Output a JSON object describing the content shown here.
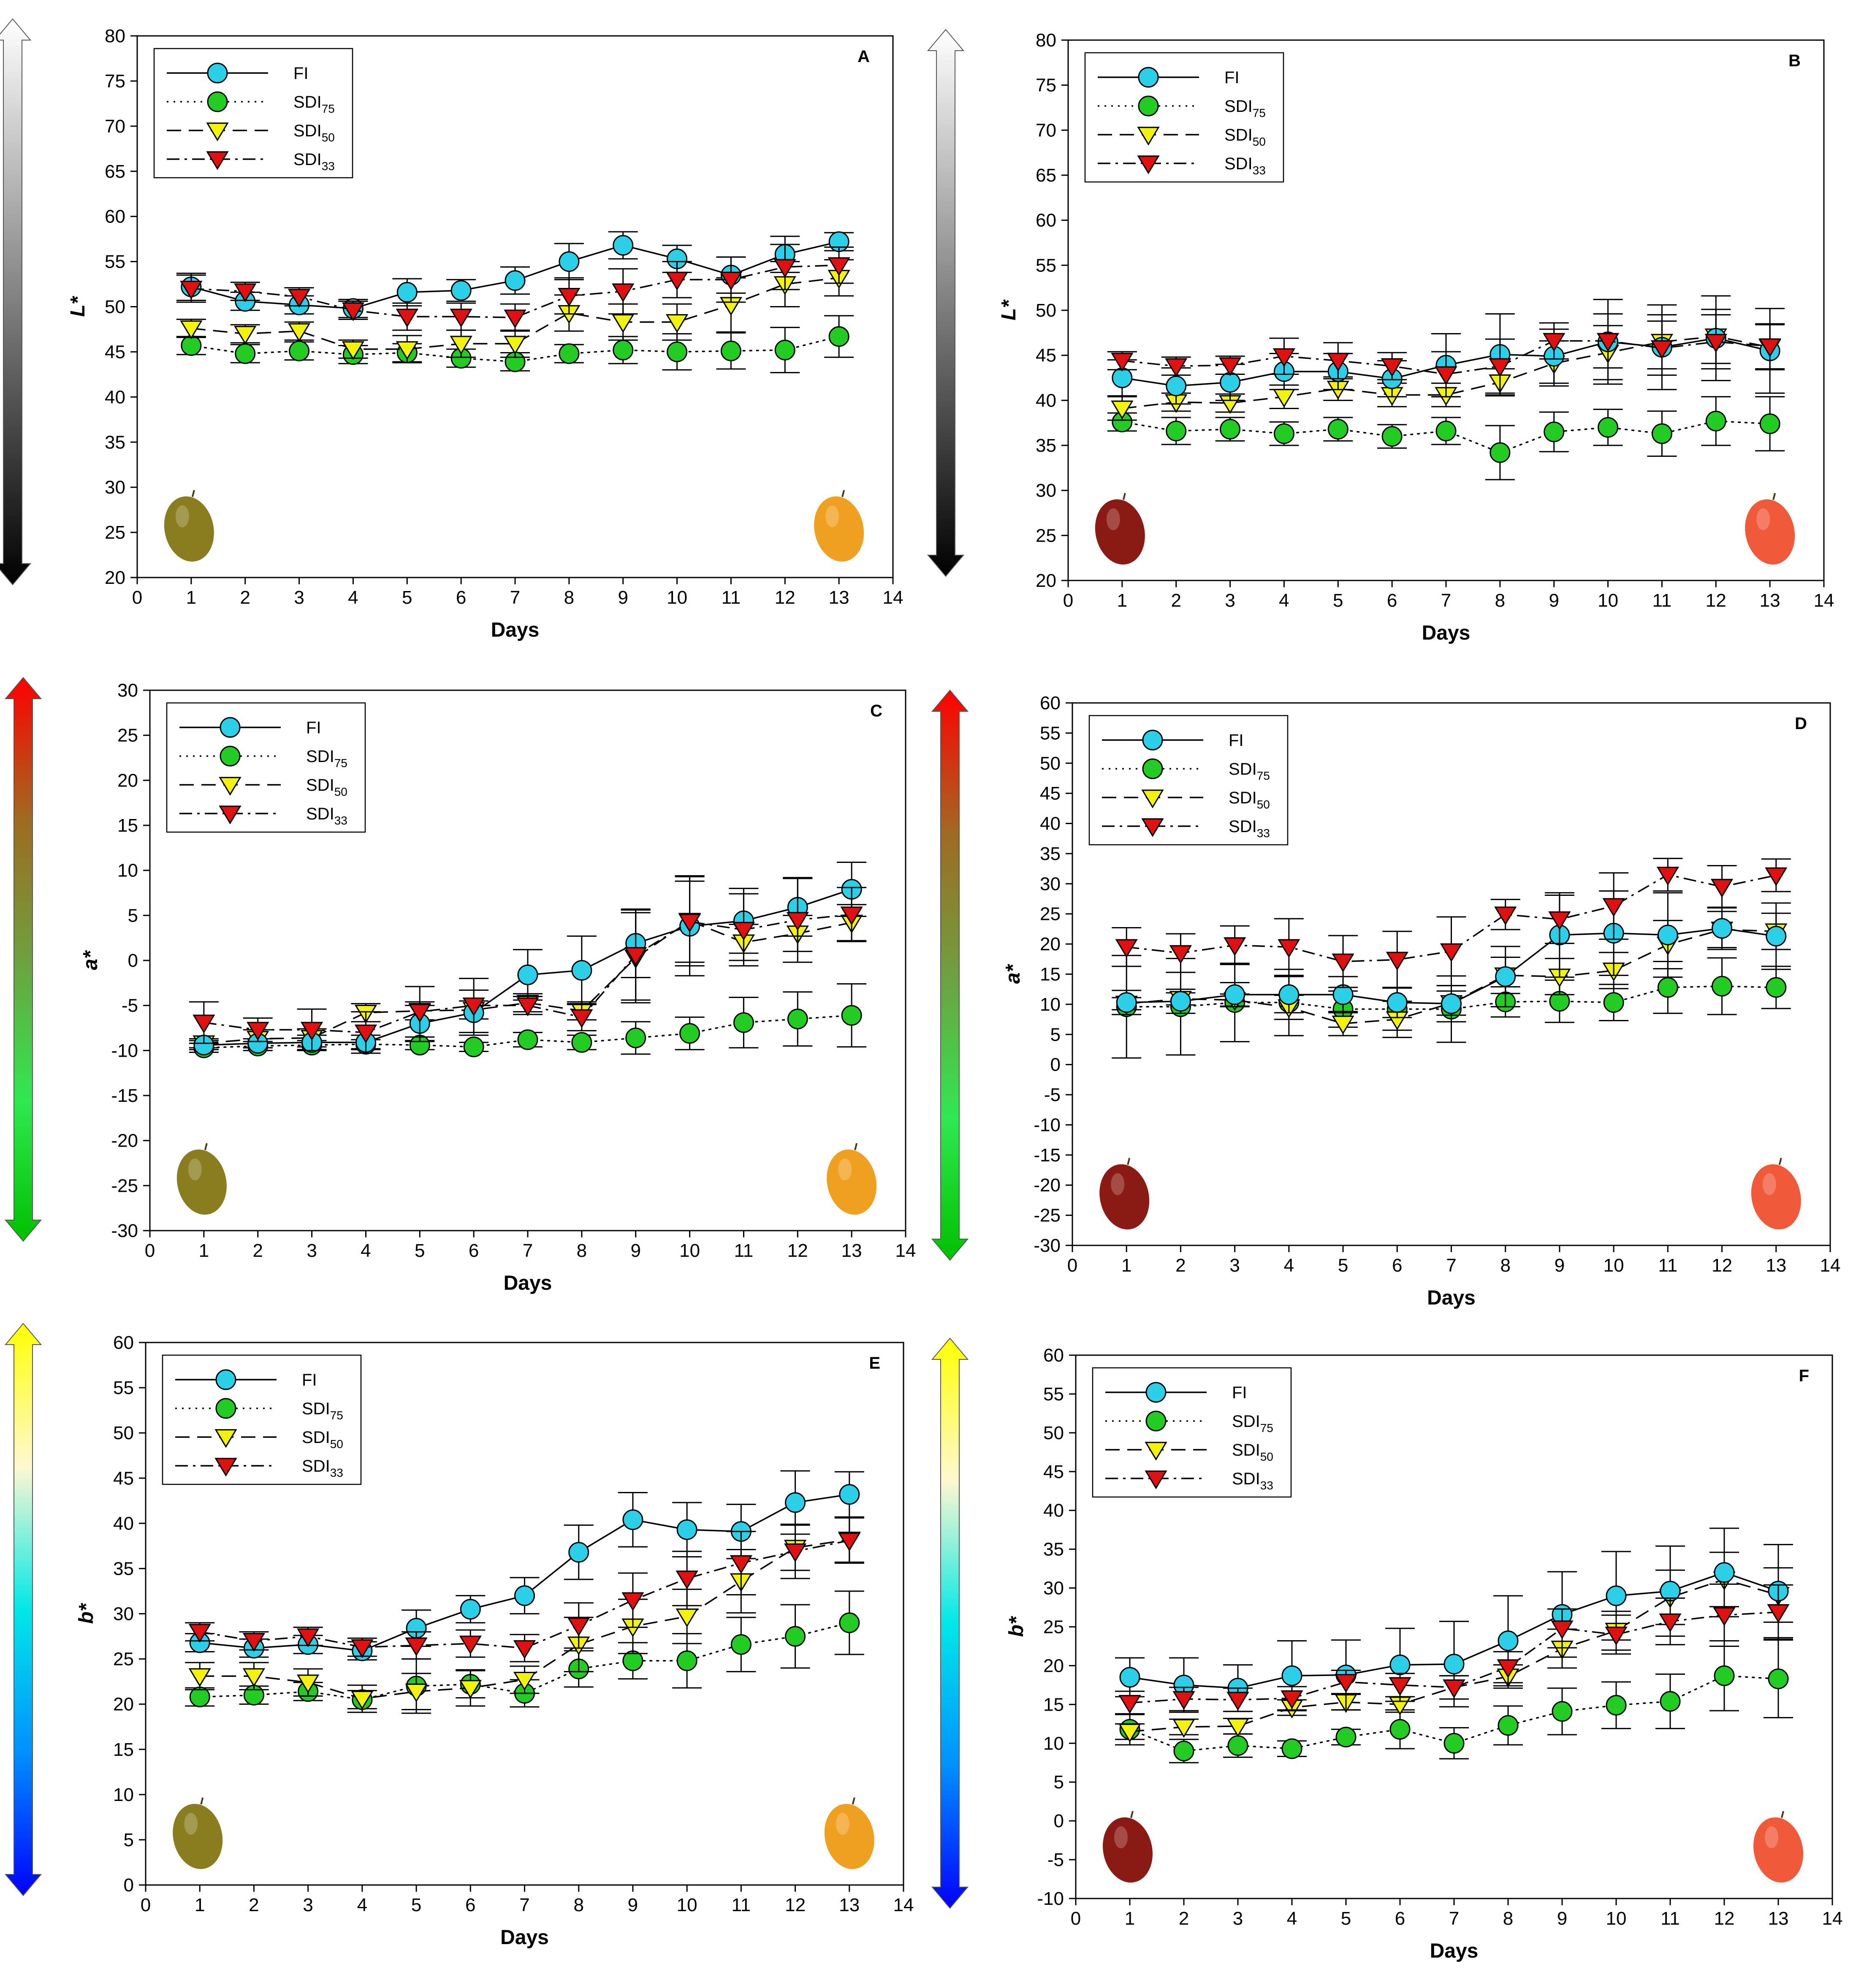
{
  "figure": {
    "x_label": "Days",
    "x_ticks": [
      "0",
      "1",
      "2",
      "3",
      "4",
      "5",
      "6",
      "7",
      "8",
      "9",
      "10",
      "11",
      "12",
      "13",
      "14"
    ]
  },
  "legend_labels": [
    {
      "key": "FI",
      "base": "FI",
      "sub": ""
    },
    {
      "key": "SDI75",
      "base": "SDI",
      "sub": "75"
    },
    {
      "key": "SDI50",
      "base": "SDI",
      "sub": "50"
    },
    {
      "key": "SDI33",
      "base": "SDI",
      "sub": "33"
    }
  ],
  "series_style": {
    "FI": {
      "color": "#2bd0e8",
      "marker": "circle",
      "dash": "none"
    },
    "SDI75": {
      "color": "#22cc22",
      "marker": "circle",
      "dash": "dotted"
    },
    "SDI50": {
      "color": "#f2f20a",
      "marker": "triangle-down",
      "dash": "dashed"
    },
    "SDI33": {
      "color": "#e01010",
      "marker": "triangle-down",
      "dash": "dashdot"
    }
  },
  "fruit_colors": {
    "green_mango": "#8a7d1f",
    "yellow_mango": "#f0a020",
    "dark_red_mango": "#8c1a14",
    "red_mango": "#f05a3a"
  },
  "chart_data": [
    {
      "type": "line",
      "panel": "A",
      "ylabel": "L*",
      "ylim": [
        20,
        80
      ],
      "ytick_step": 5,
      "xlim": [
        0,
        14
      ],
      "xlabel": "Days",
      "color_scale": [
        "#000000",
        "#ffffff"
      ],
      "fruits": [
        "green_mango",
        "yellow_mango"
      ],
      "x": [
        1,
        2,
        3,
        4,
        5,
        6,
        7,
        8,
        9,
        10,
        11,
        12,
        13
      ],
      "series": [
        {
          "name": "FI",
          "values": [
            52.2,
            50.6,
            50.2,
            49.8,
            51.6,
            51.8,
            52.9,
            55.0,
            56.8,
            55.3,
            53.5,
            55.8,
            57.2
          ],
          "errors": [
            1.5,
            1.0,
            1.0,
            1.0,
            1.5,
            1.2,
            1.5,
            2.0,
            1.5,
            1.5,
            2.0,
            2.0,
            1.0
          ]
        },
        {
          "name": "SDI75",
          "values": [
            45.7,
            44.8,
            45.1,
            44.7,
            44.9,
            44.3,
            43.9,
            44.8,
            45.2,
            45.0,
            45.1,
            45.2,
            46.7
          ],
          "errors": [
            1.0,
            1.0,
            1.0,
            1.0,
            1.0,
            1.0,
            1.0,
            1.0,
            1.5,
            2.0,
            2.0,
            2.5,
            2.3
          ]
        },
        {
          "name": "SDI50",
          "values": [
            47.6,
            47.0,
            47.3,
            45.3,
            45.3,
            45.9,
            45.9,
            49.3,
            48.3,
            48.3,
            50.2,
            52.5,
            53.2
          ],
          "errors": [
            1.0,
            1.0,
            1.0,
            1.0,
            1.5,
            1.5,
            1.5,
            2.0,
            2.0,
            2.0,
            3.0,
            2.5,
            2.0
          ]
        },
        {
          "name": "SDI33",
          "values": [
            52.0,
            51.7,
            51.1,
            49.6,
            48.9,
            48.9,
            48.8,
            51.2,
            51.7,
            53.0,
            53.0,
            54.4,
            54.6
          ],
          "errors": [
            1.5,
            1.0,
            1.0,
            1.0,
            1.5,
            1.5,
            1.5,
            2.0,
            2.5,
            2.0,
            2.5,
            2.5,
            2.0
          ]
        }
      ]
    },
    {
      "type": "line",
      "panel": "B",
      "ylabel": "L*",
      "ylim": [
        20,
        80
      ],
      "ytick_step": 5,
      "xlim": [
        0,
        14
      ],
      "xlabel": "Days",
      "color_scale": [
        "#000000",
        "#ffffff"
      ],
      "fruits": [
        "dark_red_mango",
        "red_mango"
      ],
      "x": [
        1,
        2,
        3,
        4,
        5,
        6,
        7,
        8,
        9,
        10,
        11,
        12,
        13
      ],
      "series": [
        {
          "name": "FI",
          "values": [
            42.5,
            41.6,
            42.0,
            43.2,
            43.2,
            42.4,
            43.9,
            45.1,
            44.9,
            46.5,
            45.9,
            46.9,
            45.5
          ],
          "errors": [
            2.0,
            2.0,
            2.0,
            2.0,
            2.0,
            2.0,
            3.5,
            4.5,
            3.0,
            4.7,
            4.7,
            4.7,
            4.7
          ]
        },
        {
          "name": "SDI75",
          "values": [
            37.6,
            36.6,
            36.8,
            36.3,
            36.8,
            36.0,
            36.6,
            34.2,
            36.5,
            37.0,
            36.3,
            37.7,
            37.4
          ],
          "errors": [
            1.0,
            1.5,
            1.3,
            1.3,
            1.3,
            1.3,
            1.5,
            3.0,
            2.2,
            2.0,
            2.5,
            2.7,
            3.0
          ]
        },
        {
          "name": "SDI50",
          "values": [
            39.1,
            39.8,
            39.7,
            40.4,
            41.3,
            40.6,
            40.6,
            42.0,
            44.1,
            45.3,
            46.5,
            47.1,
            45.9
          ],
          "errors": [
            1.3,
            1.0,
            1.0,
            1.3,
            1.3,
            1.3,
            1.3,
            1.5,
            2.5,
            3.0,
            3.0,
            3.0,
            2.5
          ]
        },
        {
          "name": "SDI33",
          "values": [
            44.4,
            43.8,
            43.9,
            44.9,
            44.4,
            43.8,
            42.9,
            43.8,
            46.6,
            46.6,
            45.8,
            46.5,
            46.0
          ],
          "errors": [
            1.0,
            1.0,
            1.0,
            2.0,
            2.0,
            1.5,
            2.5,
            3.0,
            2.0,
            3.0,
            3.0,
            3.0,
            2.5
          ]
        }
      ]
    },
    {
      "type": "line",
      "panel": "C",
      "ylabel": "a*",
      "ylim": [
        -30,
        30
      ],
      "ytick_step": 5,
      "xlim": [
        0,
        14
      ],
      "xlabel": "Days",
      "color_scale": [
        "#00c000",
        "#30e850",
        "#6ea040",
        "#a06a20",
        "#ff0000"
      ],
      "fruits": [
        "green_mango",
        "yellow_mango"
      ],
      "x": [
        1,
        2,
        3,
        4,
        5,
        6,
        7,
        8,
        9,
        10,
        11,
        12,
        13
      ],
      "series": [
        {
          "name": "FI",
          "values": [
            -9.4,
            -9.2,
            -9.1,
            -9.1,
            -7.0,
            -5.8,
            -1.6,
            -1.1,
            1.9,
            3.8,
            4.4,
            5.9,
            7.9
          ],
          "errors": [
            0.5,
            0.5,
            0.8,
            0.8,
            2.0,
            2.5,
            2.8,
            3.8,
            3.8,
            5.5,
            3.6,
            3.2,
            3.0
          ]
        },
        {
          "name": "SDI75",
          "values": [
            -9.7,
            -9.5,
            -9.4,
            -9.3,
            -9.4,
            -9.6,
            -8.8,
            -9.1,
            -8.6,
            -8.1,
            -6.9,
            -6.5,
            -6.1
          ],
          "errors": [
            0.5,
            0.5,
            0.5,
            0.5,
            0.5,
            0.5,
            0.8,
            0.8,
            1.8,
            1.8,
            2.8,
            3.0,
            3.5
          ]
        },
        {
          "name": "SDI50",
          "values": [
            -9.2,
            -8.7,
            -8.6,
            -5.8,
            -5.6,
            -5.5,
            -4.7,
            -5.6,
            0.3,
            4.4,
            2.0,
            3.0,
            4.2
          ],
          "errors": [
            0.5,
            1.0,
            1.0,
            1.0,
            1.0,
            1.0,
            1.0,
            1.0,
            5.0,
            5.0,
            2.0,
            2.0,
            2.0
          ]
        },
        {
          "name": "SDI33",
          "values": [
            -6.9,
            -7.7,
            -7.7,
            -8.0,
            -5.7,
            -5.0,
            -5.0,
            -6.3,
            0.6,
            4.3,
            3.4,
            4.5,
            5.1
          ],
          "errors": [
            2.3,
            1.3,
            2.3,
            2.3,
            2.8,
            3.0,
            1.0,
            1.5,
            5.0,
            4.5,
            4.0,
            4.7,
            3.0
          ]
        }
      ]
    },
    {
      "type": "line",
      "panel": "D",
      "ylabel": "a*",
      "ylim": [
        -30,
        60
      ],
      "ytick_step": 5,
      "xlim": [
        0,
        14
      ],
      "xlabel": "Days",
      "color_scale": [
        "#00c000",
        "#30e850",
        "#6ea040",
        "#a06a20",
        "#ff0000"
      ],
      "fruits": [
        "dark_red_mango",
        "red_mango"
      ],
      "x": [
        1,
        2,
        3,
        4,
        5,
        6,
        7,
        8,
        9,
        10,
        11,
        12,
        13
      ],
      "series": [
        {
          "name": "FI",
          "values": [
            10.3,
            10.5,
            11.6,
            11.6,
            11.6,
            10.3,
            10.1,
            14.6,
            21.5,
            21.8,
            21.5,
            22.6,
            21.3
          ],
          "errors": [
            2.0,
            2.0,
            2.0,
            3.0,
            3.0,
            2.5,
            3.0,
            5.0,
            7.0,
            7.0,
            7.0,
            3.5,
            5.5
          ]
        },
        {
          "name": "SDI75",
          "values": [
            9.6,
            9.6,
            10.3,
            10.3,
            9.2,
            9.2,
            9.2,
            10.4,
            10.5,
            10.3,
            12.8,
            13.0,
            12.8
          ],
          "errors": [
            8.5,
            8.0,
            6.5,
            5.5,
            3.0,
            3.5,
            5.5,
            2.5,
            3.5,
            3.0,
            4.3,
            4.7,
            3.5
          ]
        },
        {
          "name": "SDI50",
          "values": [
            10.1,
            10.9,
            10.7,
            9.5,
            6.8,
            7.5,
            10.2,
            14.8,
            14.6,
            15.6,
            19.9,
            22.4,
            22.1
          ],
          "errors": [
            1.0,
            1.0,
            1.0,
            2.0,
            2.0,
            3.0,
            2.0,
            3.0,
            3.0,
            3.0,
            4.0,
            3.0,
            3.0
          ]
        },
        {
          "name": "SDI33",
          "values": [
            19.5,
            18.5,
            19.8,
            19.5,
            17.1,
            17.4,
            18.8,
            24.9,
            24.1,
            26.3,
            31.5,
            29.5,
            31.4
          ],
          "errors": [
            3.2,
            3.2,
            3.2,
            4.7,
            4.3,
            4.7,
            5.7,
            2.5,
            4.0,
            5.5,
            2.7,
            3.5,
            2.7
          ]
        }
      ]
    },
    {
      "type": "line",
      "panel": "E",
      "ylabel": "b*",
      "ylim": [
        0,
        60
      ],
      "ytick_step": 5,
      "xlim": [
        0,
        14
      ],
      "xlabel": "Days",
      "color_scale": [
        "#0000ff",
        "#0090ff",
        "#00e8e8",
        "#fff8d0",
        "#ffff00"
      ],
      "fruits": [
        "green_mango",
        "yellow_mango"
      ],
      "x": [
        1,
        2,
        3,
        4,
        5,
        6,
        7,
        8,
        9,
        10,
        11,
        12,
        13
      ],
      "series": [
        {
          "name": "FI",
          "values": [
            26.8,
            26.2,
            26.6,
            25.9,
            28.4,
            30.5,
            32.0,
            36.8,
            40.4,
            39.3,
            39.1,
            42.3,
            43.2
          ],
          "errors": [
            1.0,
            1.0,
            1.0,
            1.0,
            2.0,
            1.5,
            2.0,
            3.0,
            3.0,
            3.0,
            3.0,
            3.5,
            2.5
          ]
        },
        {
          "name": "SDI75",
          "values": [
            20.8,
            21.0,
            21.4,
            20.5,
            22.0,
            22.2,
            21.2,
            23.9,
            24.8,
            24.8,
            26.6,
            27.5,
            29.0
          ],
          "errors": [
            1.0,
            1.0,
            1.0,
            1.0,
            3.0,
            1.5,
            1.5,
            2.0,
            2.0,
            3.0,
            3.0,
            3.5,
            3.5
          ]
        },
        {
          "name": "SDI50",
          "values": [
            23.1,
            23.1,
            22.4,
            20.6,
            21.4,
            21.8,
            22.7,
            26.6,
            28.6,
            29.7,
            33.6,
            37.3,
            38.2
          ],
          "errors": [
            1.5,
            1.5,
            1.5,
            1.5,
            2.0,
            2.0,
            1.5,
            3.0,
            3.0,
            3.0,
            3.5,
            2.5,
            2.5
          ]
        },
        {
          "name": "SDI33",
          "values": [
            28.0,
            27.0,
            27.5,
            26.3,
            26.5,
            26.7,
            26.2,
            28.7,
            31.5,
            33.9,
            35.6,
            36.9,
            38.1
          ],
          "errors": [
            1.0,
            1.0,
            1.0,
            1.0,
            1.5,
            1.5,
            1.5,
            2.5,
            3.0,
            3.0,
            3.5,
            3.0,
            2.5
          ]
        }
      ]
    },
    {
      "type": "line",
      "panel": "F",
      "ylabel": "b*",
      "ylim": [
        -10,
        60
      ],
      "ytick_step": 5,
      "xlim": [
        0,
        14
      ],
      "xlabel": "Days",
      "color_scale": [
        "#0000ff",
        "#0090ff",
        "#00e8e8",
        "#fff8d0",
        "#ffff00"
      ],
      "fruits": [
        "dark_red_mango",
        "red_mango"
      ],
      "x": [
        1,
        2,
        3,
        4,
        5,
        6,
        7,
        8,
        9,
        10,
        11,
        12,
        13
      ],
      "series": [
        {
          "name": "FI",
          "values": [
            18.5,
            17.5,
            17.1,
            18.7,
            18.8,
            20.1,
            20.2,
            23.2,
            26.6,
            29.0,
            29.6,
            32.0,
            29.6
          ],
          "errors": [
            2.5,
            3.5,
            3.0,
            4.5,
            4.5,
            4.7,
            5.5,
            5.8,
            5.5,
            5.7,
            5.8,
            5.7,
            6.0
          ]
        },
        {
          "name": "SDI75",
          "values": [
            11.8,
            9.0,
            9.7,
            9.3,
            10.8,
            11.8,
            10.0,
            12.3,
            14.1,
            14.9,
            15.4,
            18.7,
            18.3
          ],
          "errors": [
            2.0,
            1.5,
            1.5,
            1.0,
            1.0,
            2.5,
            2.0,
            2.5,
            3.0,
            3.0,
            3.5,
            4.5,
            5.0
          ]
        },
        {
          "name": "SDI50",
          "values": [
            11.5,
            12.1,
            12.2,
            14.6,
            15.3,
            15.0,
            17.2,
            18.6,
            22.2,
            24.5,
            28.8,
            31.1,
            29.1
          ],
          "errors": [
            1.0,
            1.0,
            1.0,
            1.0,
            1.0,
            1.0,
            1.5,
            1.5,
            2.5,
            2.5,
            3.5,
            3.5,
            3.5
          ]
        },
        {
          "name": "SDI33",
          "values": [
            15.2,
            15.7,
            15.6,
            15.8,
            17.9,
            17.5,
            17.2,
            19.8,
            24.8,
            24.0,
            25.7,
            26.5,
            26.9
          ],
          "errors": [
            1.5,
            1.5,
            1.5,
            1.5,
            1.5,
            1.5,
            1.5,
            2.0,
            2.5,
            2.5,
            3.0,
            4.0,
            3.5
          ]
        }
      ]
    }
  ]
}
